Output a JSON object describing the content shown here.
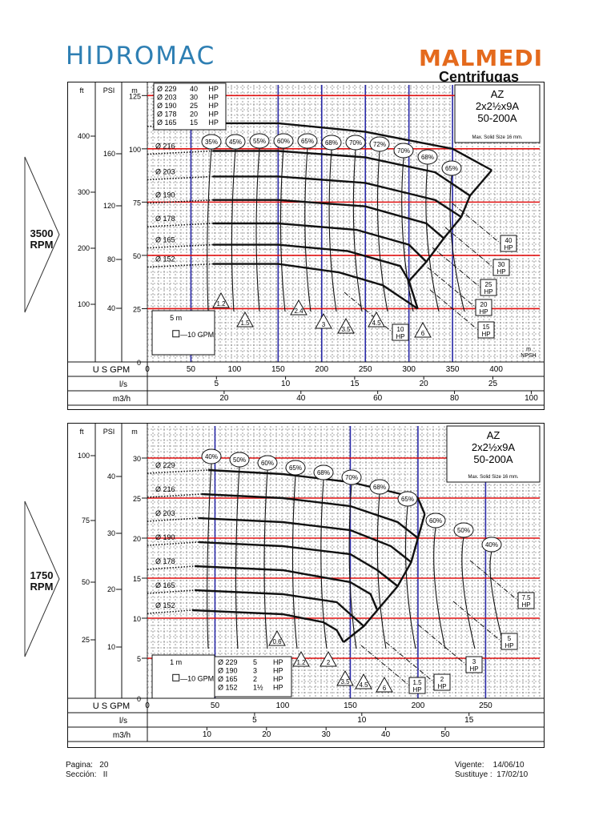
{
  "header": {
    "brand_left": "HIDROMAC",
    "brand_right": "MALMEDI",
    "brand_right_sub": "Centrifugas"
  },
  "footer": {
    "pagina_label": "Pagina:",
    "pagina_value": "20",
    "seccion_label": "Sección:",
    "seccion_value": "II",
    "vigente_label": "Vigente:",
    "vigente_value": "14/06/10",
    "sustituye_label": "Sustituye :",
    "sustituye_value": "17/02/10"
  },
  "colors": {
    "red_line": "#e01010",
    "blue_line": "#2a2aa8",
    "curve": "#111111",
    "hidromac": "#2e7fb3",
    "malmedi": "#e46a1d"
  },
  "chart_data": [
    {
      "type": "line",
      "speed": "3500 RPM",
      "model": [
        "AZ",
        "2x2½x9A",
        "50-200A"
      ],
      "note": "Max. Solid  Size 16  mm.",
      "axes": {
        "head_ft_label": "ft",
        "head_psi_label": "PSI",
        "head_m_label": "m",
        "head_ft_ticks": [
          "400",
          "300",
          "200",
          "100"
        ],
        "head_psi_ticks": [
          "160",
          "120",
          "80",
          "40"
        ],
        "head_m_ticks": [
          "125",
          "100",
          "75",
          "50",
          "25",
          "0"
        ],
        "ylim_m": [
          0,
          130
        ],
        "flow_gpm_label": "U S  GPM",
        "flow_gpm_ticks": [
          "0",
          "50",
          "100",
          "150",
          "200",
          "250",
          "300",
          "350",
          "400"
        ],
        "flow_ls_label": "l/s",
        "flow_ls_ticks": [
          "5",
          "10",
          "15",
          "20",
          "25"
        ],
        "flow_m3h_label": "m3/h",
        "flow_m3h_ticks": [
          "20",
          "40",
          "60",
          "80",
          "100"
        ],
        "xlim_gpm": [
          0,
          450
        ]
      },
      "impeller_table": [
        {
          "dia": "Ø 229",
          "power": "40",
          "unit": "HP"
        },
        {
          "dia": "Ø 203",
          "power": "30",
          "unit": "HP"
        },
        {
          "dia": "Ø 190",
          "power": "25",
          "unit": "HP"
        },
        {
          "dia": "Ø 178",
          "power": "20",
          "unit": "HP"
        },
        {
          "dia": "Ø 165",
          "power": "15",
          "unit": "HP"
        }
      ],
      "scale_legend": {
        "vertical": "5 m",
        "horizontal": "10 GPM"
      },
      "series": [
        {
          "name": "Ø 229",
          "x": [
            75,
            150,
            250,
            350,
            395
          ],
          "y": [
            112,
            112,
            108,
            100,
            90
          ]
        },
        {
          "name": "Ø 216",
          "x": [
            75,
            150,
            250,
            330,
            370
          ],
          "y": [
            99,
            99,
            96,
            89,
            78
          ]
        },
        {
          "name": "Ø 203",
          "x": [
            75,
            150,
            250,
            330,
            360
          ],
          "y": [
            87,
            87,
            84,
            76,
            68
          ]
        },
        {
          "name": "Ø 190",
          "x": [
            75,
            150,
            250,
            320,
            340
          ],
          "y": [
            76,
            76,
            73,
            65,
            58
          ]
        },
        {
          "name": "Ø 178",
          "x": [
            75,
            150,
            240,
            300,
            320
          ],
          "y": [
            65,
            65,
            62,
            55,
            47
          ]
        },
        {
          "name": "Ø 165",
          "x": [
            75,
            150,
            230,
            290,
            300
          ],
          "y": [
            55,
            55,
            52,
            45,
            38
          ]
        },
        {
          "name": "Ø 152",
          "x": [
            75,
            150,
            220,
            270,
            310
          ],
          "y": [
            46,
            46,
            42,
            36,
            25
          ]
        }
      ],
      "efficiency_labels": [
        "35%",
        "45%",
        "55%",
        "60%",
        "65%",
        "68%",
        "70%",
        "72%",
        "70%",
        "68%",
        "65%"
      ],
      "power_labels": [
        "40 HP",
        "30 HP",
        "25 HP",
        "20 HP",
        "15 HP",
        "10 HP"
      ],
      "npsh_labels": [
        "1.2",
        "1.5",
        "2.4",
        "3",
        "3.5",
        "4.5",
        "6"
      ],
      "npsh_axis": "m NPSH",
      "red_lines_m": [
        125,
        100,
        75,
        50,
        25
      ],
      "blue_lines_gpm": [
        50,
        150,
        200,
        250,
        300,
        350
      ]
    },
    {
      "type": "line",
      "speed": "1750 RPM",
      "model": [
        "AZ",
        "2x2½x9A",
        "50-200A"
      ],
      "note": "Max. Solid  Size 16  mm.",
      "axes": {
        "head_ft_label": "ft",
        "head_psi_label": "PSI",
        "head_m_label": "m",
        "head_ft_ticks": [
          "100",
          "75",
          "50",
          "25"
        ],
        "head_psi_ticks": [
          "40",
          "30",
          "20",
          "10"
        ],
        "head_m_ticks": [
          "30",
          "25",
          "20",
          "15",
          "10",
          "5",
          "0"
        ],
        "ylim_m": [
          0,
          34
        ],
        "flow_gpm_label": "U S  GPM",
        "flow_gpm_ticks": [
          "0",
          "50",
          "100",
          "150",
          "200",
          "250"
        ],
        "flow_ls_label": "l/s",
        "flow_ls_ticks": [
          "5",
          "10",
          "15"
        ],
        "flow_m3h_label": "m3/h",
        "flow_m3h_ticks": [
          "10",
          "20",
          "30",
          "40",
          "50"
        ],
        "xlim_gpm": [
          0,
          290
        ]
      },
      "impeller_table": [
        {
          "dia": "Ø 229",
          "power": "5",
          "unit": "HP"
        },
        {
          "dia": "Ø 190",
          "power": "3",
          "unit": "HP"
        },
        {
          "dia": "Ø 165",
          "power": "2",
          "unit": "HP"
        },
        {
          "dia": "Ø 152",
          "power": "1½",
          "unit": "HP"
        }
      ],
      "scale_legend": {
        "vertical": "1 m",
        "horizontal": "10 GPM"
      },
      "series": [
        {
          "name": "Ø 229",
          "x": [
            45,
            100,
            150,
            200,
            205
          ],
          "y": [
            28.5,
            28,
            27,
            25,
            23
          ]
        },
        {
          "name": "Ø 216",
          "x": [
            40,
            100,
            150,
            185,
            200
          ],
          "y": [
            25.5,
            25,
            24,
            22,
            20
          ]
        },
        {
          "name": "Ø 203",
          "x": [
            38,
            100,
            150,
            180,
            195
          ],
          "y": [
            22.5,
            22,
            21,
            19,
            17
          ]
        },
        {
          "name": "Ø 190",
          "x": [
            38,
            100,
            150,
            170,
            185
          ],
          "y": [
            19.5,
            19,
            18,
            16,
            14
          ]
        },
        {
          "name": "Ø 178",
          "x": [
            35,
            100,
            150,
            165,
            170
          ],
          "y": [
            16.5,
            16,
            14.5,
            13,
            11
          ]
        },
        {
          "name": "Ø 165",
          "x": [
            35,
            100,
            140,
            150,
            160
          ],
          "y": [
            13.5,
            13,
            12,
            10.5,
            9
          ]
        },
        {
          "name": "Ø 152",
          "x": [
            33,
            100,
            130,
            140,
            145
          ],
          "y": [
            11,
            10.5,
            9.5,
            8.5,
            7
          ]
        }
      ],
      "efficiency_labels": [
        "40%",
        "50%",
        "60%",
        "65%",
        "68%",
        "70%",
        "68%",
        "65%",
        "60%",
        "50%",
        "40%"
      ],
      "power_labels": [
        "7.5 HP",
        "5 HP",
        "3 HP",
        "2 HP",
        "1.5 HP"
      ],
      "npsh_labels": [
        "0.6",
        "1.2",
        "2",
        "3.5",
        "4.5",
        "6"
      ],
      "red_lines_m": [
        30,
        25,
        20,
        15,
        10,
        5
      ],
      "blue_lines_gpm": [
        50,
        150,
        200,
        250
      ]
    }
  ]
}
